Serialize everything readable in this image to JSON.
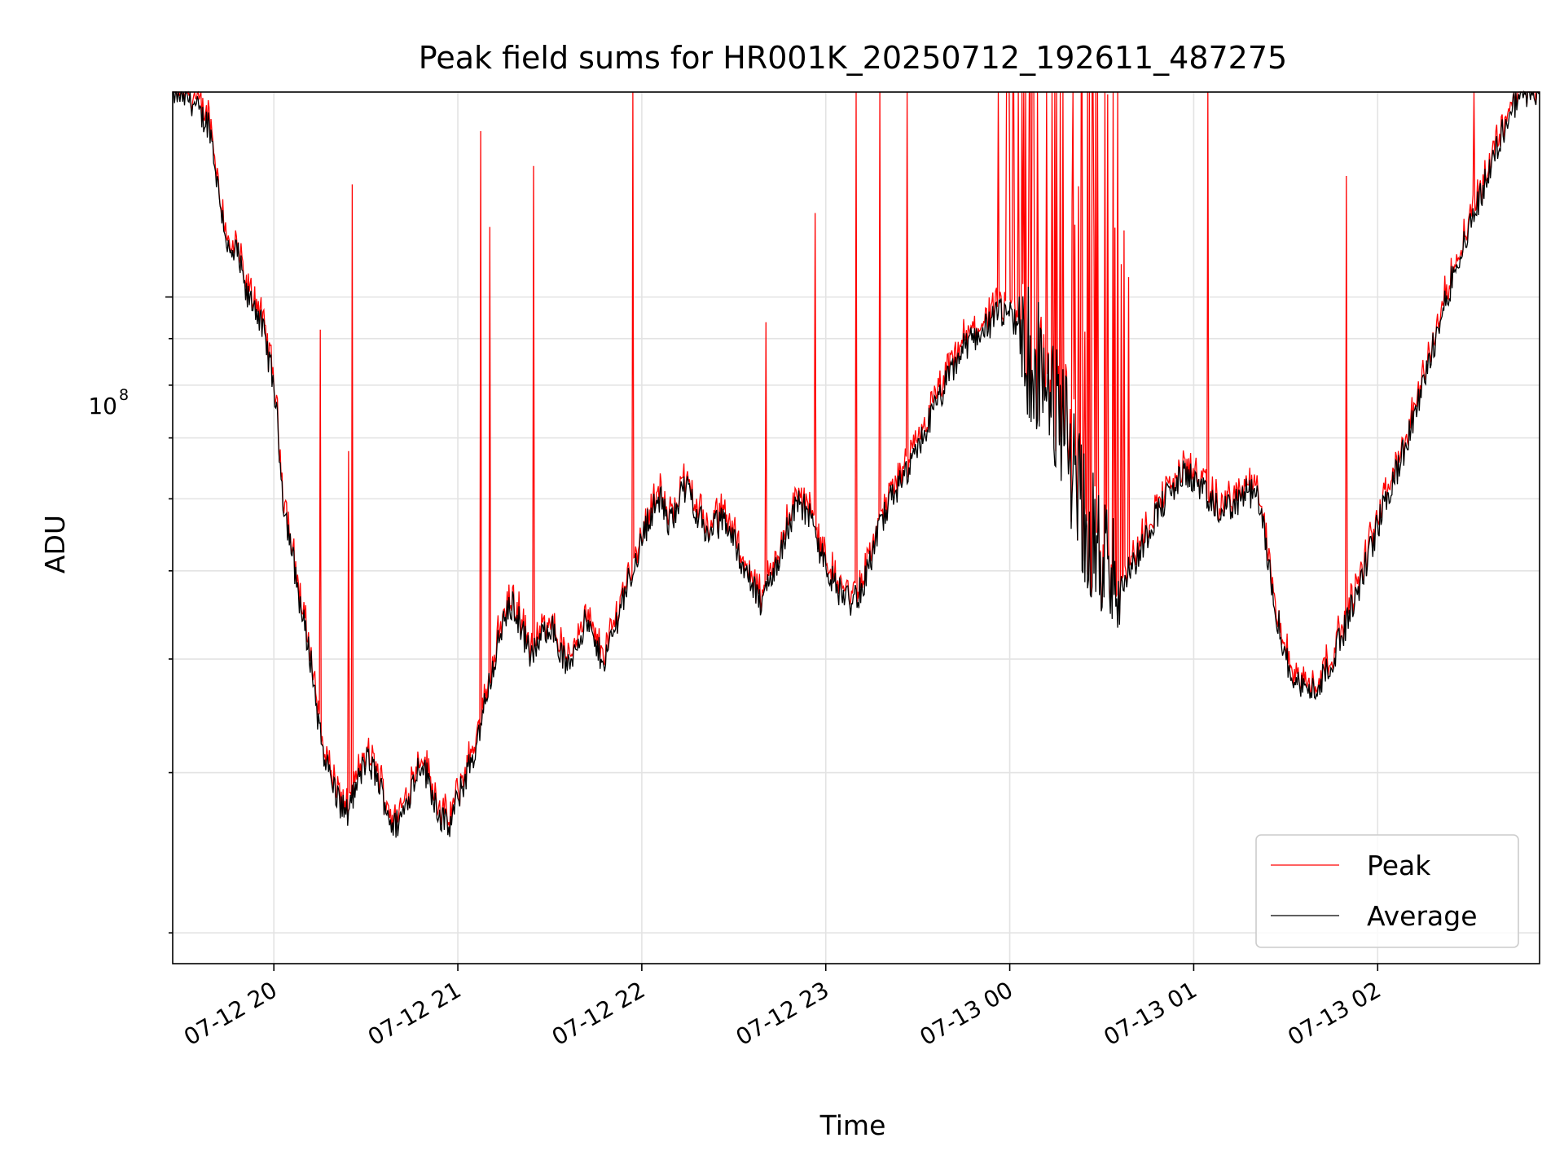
{
  "chart_data": {
    "type": "line",
    "title": "Peak field sums for HR001K_20250712_192611_487275",
    "xlabel": "Time",
    "ylabel": "ADU",
    "x_unit": "hours since 07-12 19:00",
    "xlim_hours": [
      0.45,
      7.88
    ],
    "ylim": [
      18500000,
      168000000
    ],
    "yscale": "log",
    "y_major_tick_label": {
      "base": "10",
      "exp": "8",
      "value": 100000000
    },
    "y_minor_ticks": [
      20000000,
      30000000,
      40000000,
      50000000,
      60000000,
      70000000,
      80000000,
      90000000
    ],
    "x_ticks": [
      {
        "label": "07-12 20",
        "hour": 1
      },
      {
        "label": "07-12 21",
        "hour": 2
      },
      {
        "label": "07-12 22",
        "hour": 3
      },
      {
        "label": "07-12 23",
        "hour": 4
      },
      {
        "label": "07-13 00",
        "hour": 5
      },
      {
        "label": "07-13 01",
        "hour": 6
      },
      {
        "label": "07-13 02",
        "hour": 7
      }
    ],
    "grid": true,
    "legend": {
      "position": "lower-right"
    },
    "series": [
      {
        "name": "Peak",
        "color": "#ff0000"
      },
      {
        "name": "Average",
        "color": "#000000"
      }
    ],
    "average_curve": [
      [
        0.45,
        168
      ],
      [
        0.55,
        165
      ],
      [
        0.6,
        158
      ],
      [
        0.65,
        155
      ],
      [
        0.7,
        130
      ],
      [
        0.73,
        120
      ],
      [
        0.76,
        110
      ],
      [
        0.8,
        112
      ],
      [
        0.85,
        100
      ],
      [
        0.9,
        98
      ],
      [
        0.95,
        90
      ],
      [
        1.0,
        80
      ],
      [
        1.05,
        60
      ],
      [
        1.1,
        52
      ],
      [
        1.15,
        45
      ],
      [
        1.2,
        40
      ],
      [
        1.25,
        33
      ],
      [
        1.3,
        30
      ],
      [
        1.35,
        28
      ],
      [
        1.4,
        27
      ],
      [
        1.45,
        29
      ],
      [
        1.5,
        31
      ],
      [
        1.55,
        30
      ],
      [
        1.6,
        28
      ],
      [
        1.65,
        26
      ],
      [
        1.7,
        27
      ],
      [
        1.75,
        29
      ],
      [
        1.8,
        31
      ],
      [
        1.85,
        29
      ],
      [
        1.9,
        27
      ],
      [
        1.95,
        26
      ],
      [
        2.0,
        28
      ],
      [
        2.05,
        30
      ],
      [
        2.1,
        32
      ],
      [
        2.15,
        36
      ],
      [
        2.2,
        40
      ],
      [
        2.25,
        44
      ],
      [
        2.3,
        46
      ],
      [
        2.35,
        43
      ],
      [
        2.4,
        40
      ],
      [
        2.45,
        42
      ],
      [
        2.5,
        44
      ],
      [
        2.55,
        41
      ],
      [
        2.6,
        39
      ],
      [
        2.65,
        42
      ],
      [
        2.7,
        44
      ],
      [
        2.75,
        41
      ],
      [
        2.8,
        40
      ],
      [
        2.85,
        43
      ],
      [
        2.9,
        47
      ],
      [
        2.95,
        50
      ],
      [
        3.0,
        54
      ],
      [
        3.05,
        58
      ],
      [
        3.1,
        60
      ],
      [
        3.15,
        56
      ],
      [
        3.2,
        60
      ],
      [
        3.25,
        62
      ],
      [
        3.3,
        58
      ],
      [
        3.35,
        55
      ],
      [
        3.4,
        56
      ],
      [
        3.45,
        57
      ],
      [
        3.5,
        54
      ],
      [
        3.55,
        51
      ],
      [
        3.6,
        48
      ],
      [
        3.65,
        46
      ],
      [
        3.7,
        49
      ],
      [
        3.75,
        52
      ],
      [
        3.8,
        56
      ],
      [
        3.85,
        60
      ],
      [
        3.9,
        58
      ],
      [
        3.95,
        54
      ],
      [
        4.0,
        51
      ],
      [
        4.05,
        48
      ],
      [
        4.1,
        47
      ],
      [
        4.15,
        46
      ],
      [
        4.2,
        48
      ],
      [
        4.25,
        52
      ],
      [
        4.3,
        56
      ],
      [
        4.35,
        60
      ],
      [
        4.4,
        62
      ],
      [
        4.45,
        64
      ],
      [
        4.5,
        68
      ],
      [
        4.55,
        72
      ],
      [
        4.6,
        76
      ],
      [
        4.65,
        80
      ],
      [
        4.7,
        84
      ],
      [
        4.75,
        88
      ],
      [
        4.8,
        90
      ],
      [
        4.85,
        92
      ],
      [
        4.9,
        94
      ],
      [
        4.95,
        96
      ],
      [
        5.0,
        95
      ],
      [
        5.05,
        92
      ],
      [
        5.1,
        88
      ],
      [
        5.15,
        84
      ],
      [
        5.2,
        80
      ],
      [
        5.25,
        76
      ],
      [
        5.3,
        70
      ],
      [
        5.35,
        64
      ],
      [
        5.4,
        58
      ],
      [
        5.45,
        54
      ],
      [
        5.5,
        52
      ],
      [
        5.55,
        50
      ],
      [
        5.6,
        49
      ],
      [
        5.65,
        50
      ],
      [
        5.7,
        52
      ],
      [
        5.75,
        55
      ],
      [
        5.8,
        58
      ],
      [
        5.85,
        60
      ],
      [
        5.9,
        62
      ],
      [
        5.95,
        64
      ],
      [
        6.0,
        63
      ],
      [
        6.05,
        61
      ],
      [
        6.1,
        59
      ],
      [
        6.15,
        58
      ],
      [
        6.2,
        59
      ],
      [
        6.25,
        60
      ],
      [
        6.3,
        61
      ],
      [
        6.35,
        60
      ],
      [
        6.4,
        52
      ],
      [
        6.45,
        45
      ],
      [
        6.5,
        40
      ],
      [
        6.55,
        38
      ],
      [
        6.6,
        37
      ],
      [
        6.65,
        37
      ],
      [
        6.7,
        38
      ],
      [
        6.75,
        40
      ],
      [
        6.8,
        42
      ],
      [
        6.85,
        45
      ],
      [
        6.9,
        48
      ],
      [
        6.95,
        52
      ],
      [
        7.0,
        56
      ],
      [
        7.05,
        60
      ],
      [
        7.1,
        64
      ],
      [
        7.15,
        68
      ],
      [
        7.2,
        74
      ],
      [
        7.25,
        80
      ],
      [
        7.3,
        88
      ],
      [
        7.35,
        96
      ],
      [
        7.4,
        104
      ],
      [
        7.45,
        112
      ],
      [
        7.5,
        120
      ],
      [
        7.55,
        128
      ],
      [
        7.6,
        136
      ],
      [
        7.65,
        146
      ],
      [
        7.7,
        156
      ],
      [
        7.75,
        164
      ],
      [
        7.8,
        168
      ],
      [
        7.88,
        168
      ]
    ]
  }
}
